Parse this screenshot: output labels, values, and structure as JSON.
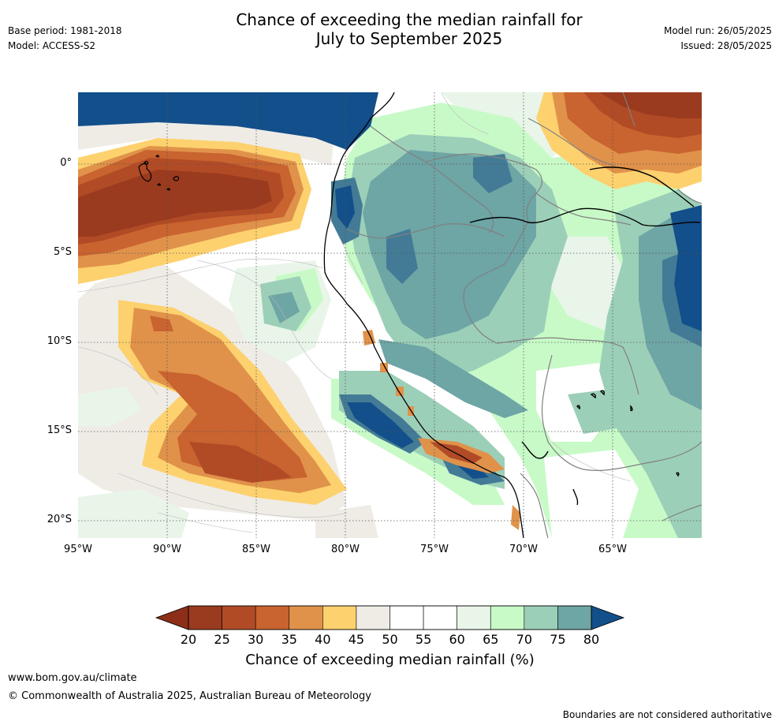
{
  "header": {
    "title_line1": "Chance of exceeding the median rainfall for",
    "title_line2": "July to September 2025",
    "base_period": "Base period: 1981-2018",
    "model": "Model: ACCESS-S2",
    "model_run": "Model run: 26/05/2025",
    "issued": "Issued: 28/05/2025"
  },
  "map": {
    "lon_labels": [
      "95°W",
      "90°W",
      "85°W",
      "80°W",
      "75°W",
      "70°W",
      "65°W"
    ],
    "lat_labels": [
      "0°",
      "5°S",
      "10°S",
      "15°S",
      "20°S"
    ]
  },
  "colorbar": {
    "ticks": [
      "20",
      "25",
      "30",
      "35",
      "40",
      "45",
      "50",
      "55",
      "60",
      "65",
      "70",
      "75",
      "80"
    ],
    "colors": [
      "#9a3a1e",
      "#b14b26",
      "#c9632f",
      "#e0924a",
      "#fdd16e",
      "#efece6",
      "#ffffff",
      "#ffffff",
      "#e9f5e9",
      "#c8fac8",
      "#9ccfb8",
      "#6ea5a5",
      "#437b96"
    ],
    "low_color": "#8c2e18",
    "high_color": "#134f8a",
    "label": "Chance of exceeding median rainfall (%)"
  },
  "footer": {
    "website": "www.bom.gov.au/climate",
    "copyright": "© Commonwealth of Australia 2025, Australian Bureau of Meteorology",
    "disclaimer": "Boundaries are not considered authoritative"
  }
}
